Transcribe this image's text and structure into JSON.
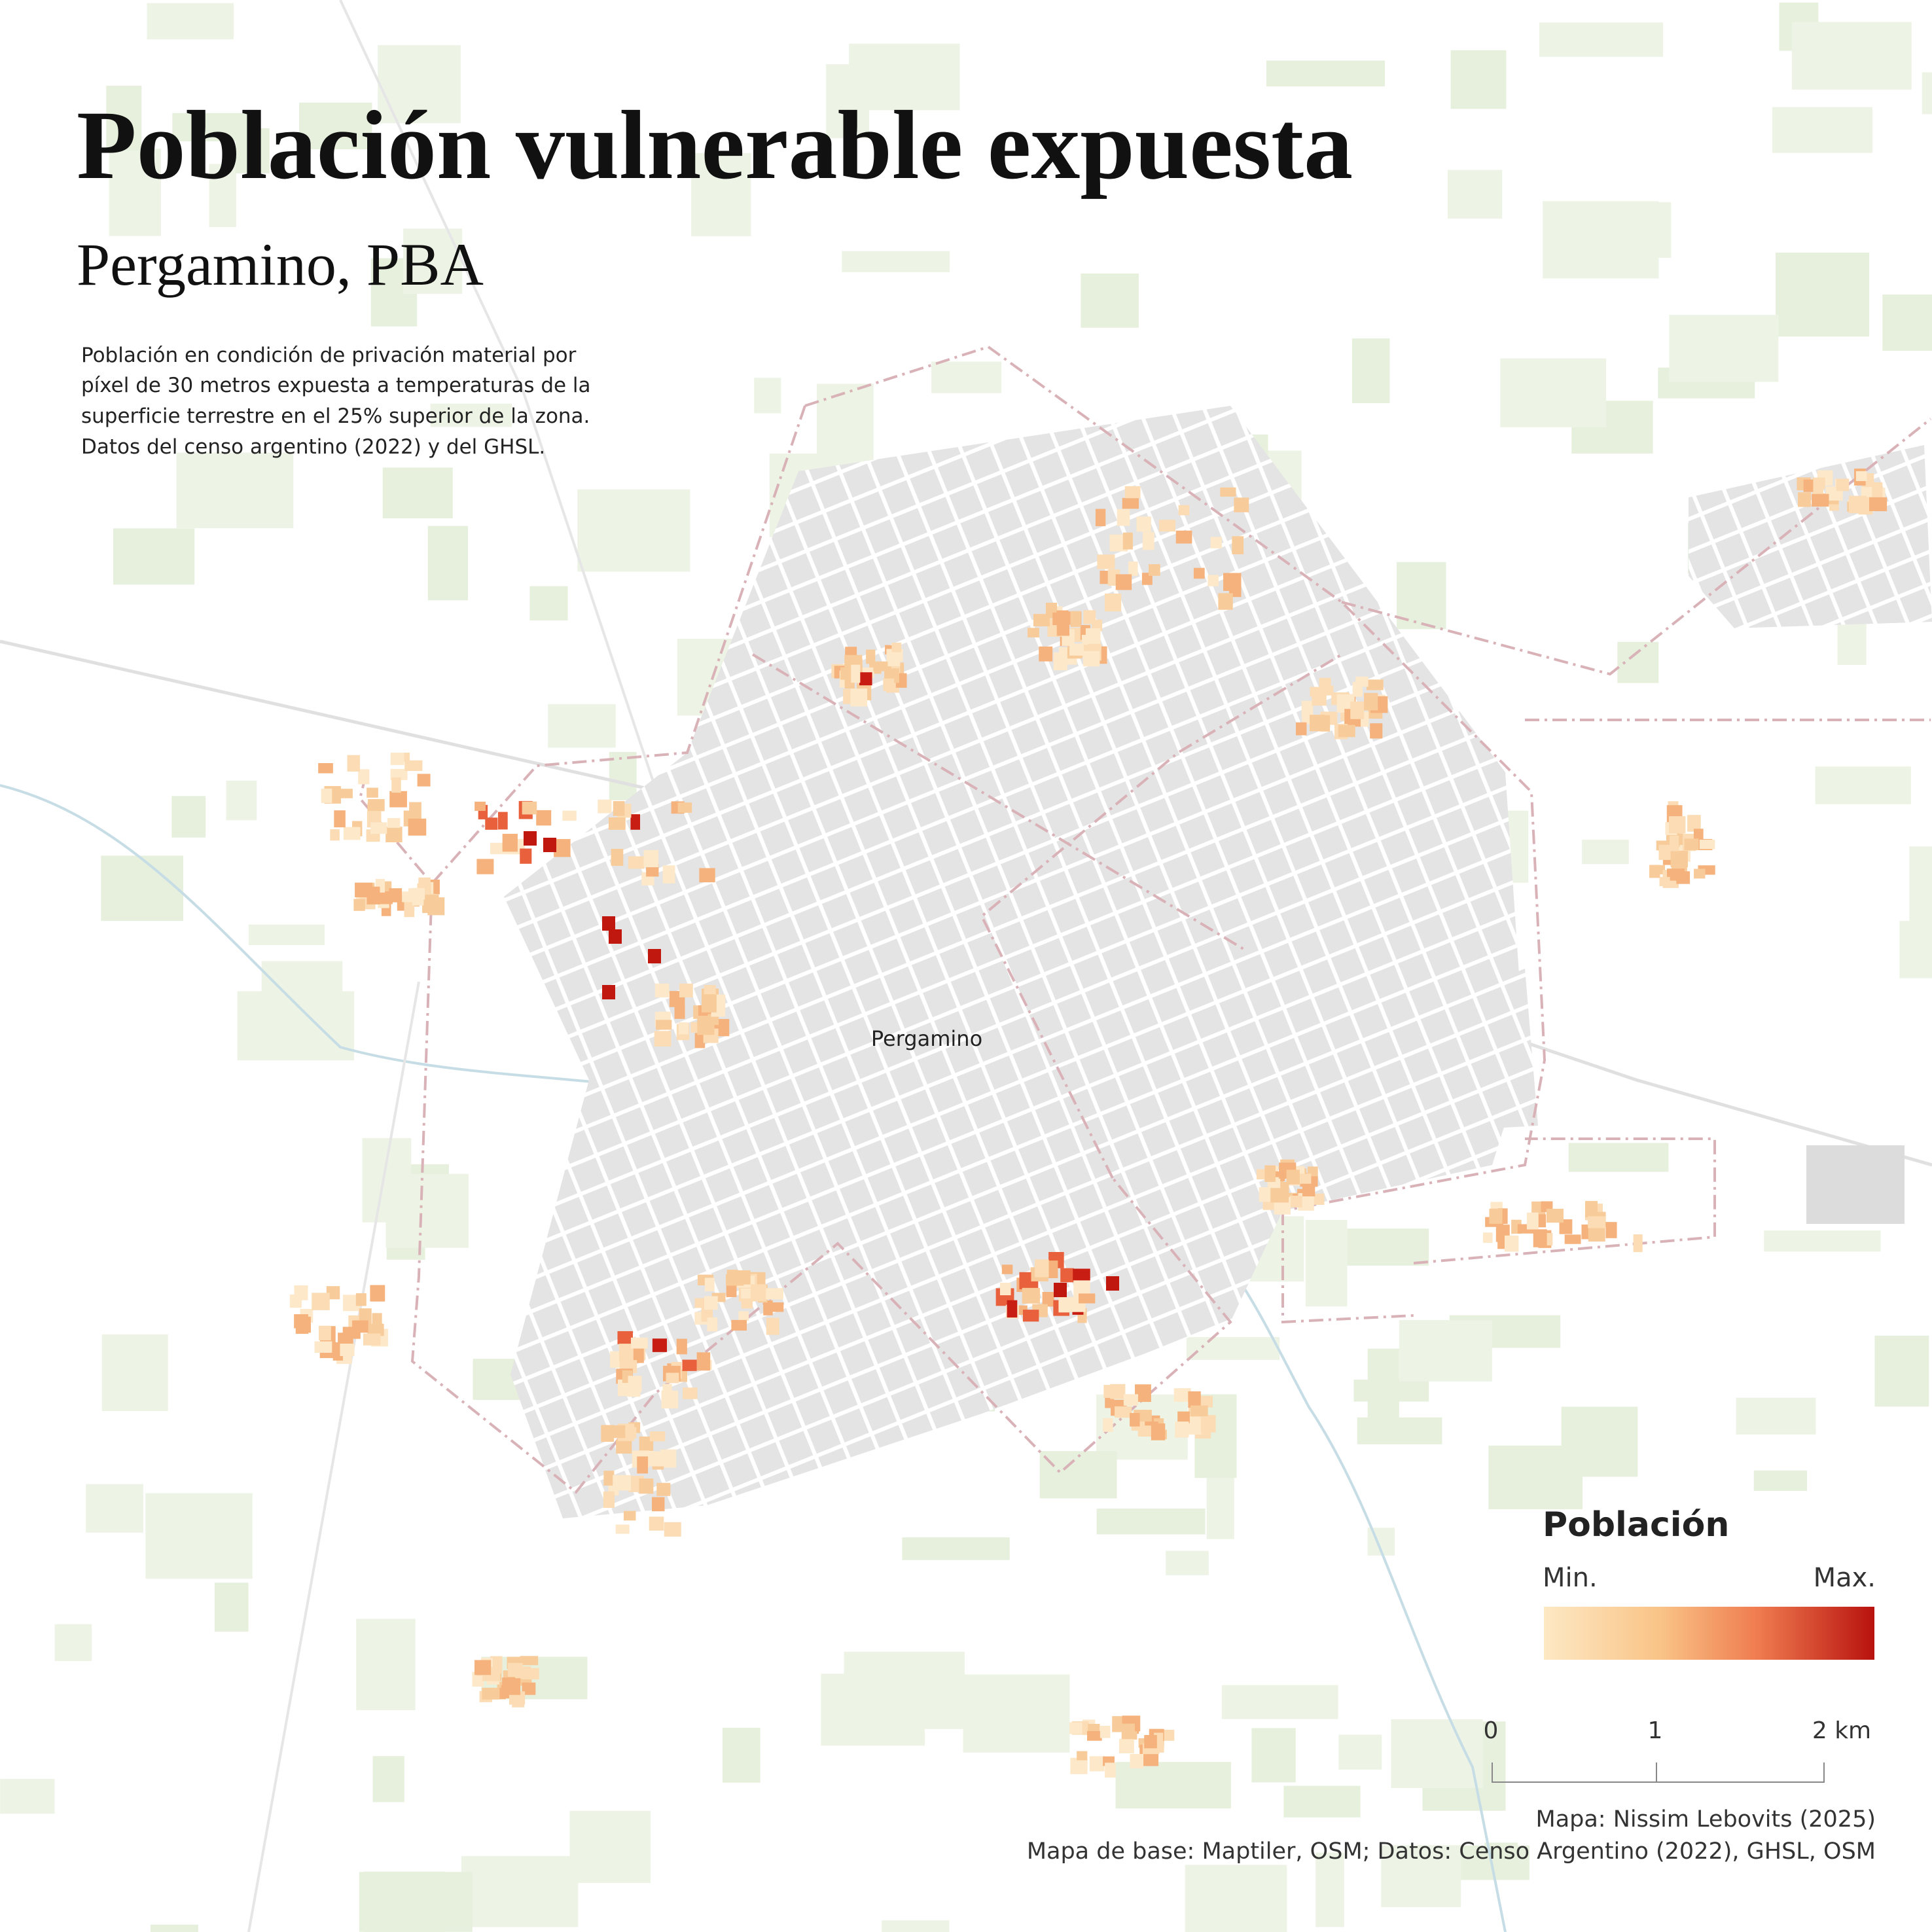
{
  "header": {
    "title": "Población vulnerable expuesta",
    "subtitle": "Pergamino, PBA",
    "description": [
      "Población en condición de privación material por",
      "píxel de 30 metros expuesta a temperaturas de la",
      "superficie terrestre en el 25% superior de la zona.",
      "Datos del censo argentino (2022) y del GHSL."
    ]
  },
  "map": {
    "place_label": "Pergamino"
  },
  "legend": {
    "title": "Población",
    "min_label": "Min.",
    "max_label": "Max."
  },
  "scale_bar": {
    "labels": [
      "0",
      "1",
      "2 km"
    ]
  },
  "credits": [
    "Mapa: Nissim Lebovits (2025)",
    "Mapa de base: Maptiler, OSM; Datos: Censo Argentino (2022), GHSL, OSM"
  ]
}
